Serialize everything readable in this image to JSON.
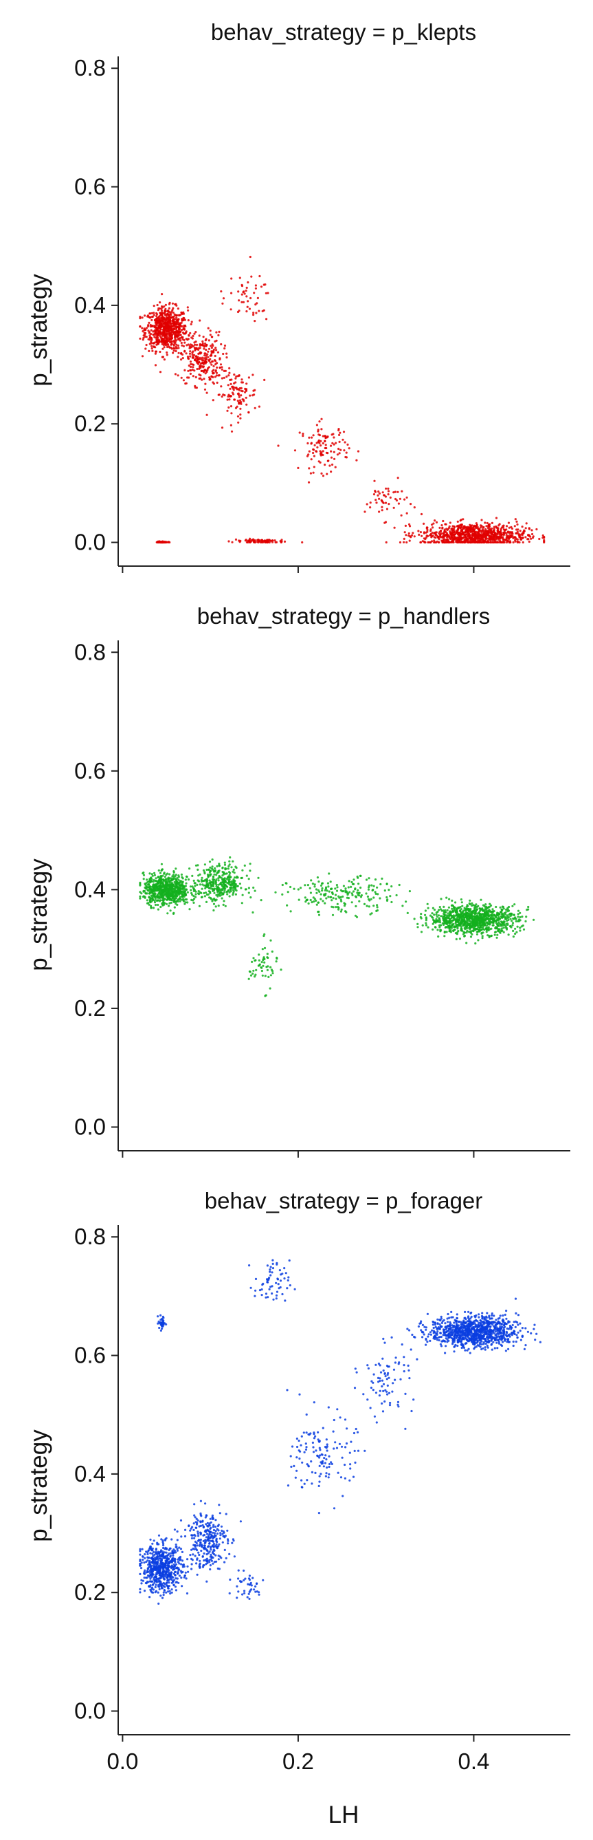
{
  "chart_data": [
    {
      "type": "scatter",
      "title": "behav_strategy = p_klepts",
      "ylabel": "p_strategy",
      "xlabel": "",
      "xlim": [
        -0.005,
        0.51
      ],
      "ylim": [
        -0.04,
        0.82
      ],
      "yticks": [
        0.0,
        0.2,
        0.4,
        0.6,
        0.8
      ],
      "ytick_labels": [
        "0.0",
        "0.2",
        "0.4",
        "0.6",
        "0.8"
      ],
      "xticks": [
        0.0,
        0.2,
        0.4
      ],
      "xtick_labels": [],
      "color": "#e00000",
      "grid": false,
      "series": [
        {
          "clusters": [
            {
              "x": 0.05,
              "y": 0.36,
              "sx": 0.012,
              "sy": 0.018,
              "n": 700
            },
            {
              "x": 0.09,
              "y": 0.31,
              "sx": 0.012,
              "sy": 0.022,
              "n": 260
            },
            {
              "x": 0.13,
              "y": 0.25,
              "sx": 0.012,
              "sy": 0.02,
              "n": 110
            },
            {
              "x": 0.23,
              "y": 0.16,
              "sx": 0.014,
              "sy": 0.02,
              "n": 110
            },
            {
              "x": 0.3,
              "y": 0.07,
              "sx": 0.012,
              "sy": 0.015,
              "n": 50
            },
            {
              "x": 0.4,
              "y": 0.012,
              "sx": 0.03,
              "sy": 0.01,
              "n": 900
            },
            {
              "x": 0.045,
              "y": 0.0,
              "sx": 0.003,
              "sy": 0.001,
              "n": 60
            },
            {
              "x": 0.155,
              "y": 0.002,
              "sx": 0.015,
              "sy": 0.002,
              "n": 80
            },
            {
              "x": 0.14,
              "y": 0.41,
              "sx": 0.015,
              "sy": 0.02,
              "n": 50
            }
          ]
        }
      ]
    },
    {
      "type": "scatter",
      "title": "behav_strategy = p_handlers",
      "ylabel": "p_strategy",
      "xlabel": "",
      "xlim": [
        -0.005,
        0.51
      ],
      "ylim": [
        -0.04,
        0.82
      ],
      "yticks": [
        0.0,
        0.2,
        0.4,
        0.6,
        0.8
      ],
      "ytick_labels": [
        "0.0",
        "0.2",
        "0.4",
        "0.6",
        "0.8"
      ],
      "xticks": [
        0.0,
        0.2,
        0.4
      ],
      "xtick_labels": [],
      "color": "#14b01e",
      "grid": false,
      "series": [
        {
          "clusters": [
            {
              "x": 0.05,
              "y": 0.4,
              "sx": 0.013,
              "sy": 0.013,
              "n": 700
            },
            {
              "x": 0.11,
              "y": 0.41,
              "sx": 0.015,
              "sy": 0.016,
              "n": 360
            },
            {
              "x": 0.16,
              "y": 0.27,
              "sx": 0.008,
              "sy": 0.02,
              "n": 55
            },
            {
              "x": 0.25,
              "y": 0.39,
              "sx": 0.03,
              "sy": 0.015,
              "n": 200
            },
            {
              "x": 0.4,
              "y": 0.35,
              "sx": 0.025,
              "sy": 0.012,
              "n": 1000
            }
          ]
        }
      ]
    },
    {
      "type": "scatter",
      "title": "behav_strategy = p_forager",
      "ylabel": "p_strategy",
      "xlabel": "LH",
      "xlim": [
        -0.005,
        0.51
      ],
      "ylim": [
        -0.04,
        0.82
      ],
      "yticks": [
        0.0,
        0.2,
        0.4,
        0.6,
        0.8
      ],
      "ytick_labels": [
        "0.0",
        "0.2",
        "0.4",
        "0.6",
        "0.8"
      ],
      "xticks": [
        0.0,
        0.2,
        0.4
      ],
      "xtick_labels": [
        "0.0",
        "0.2",
        "0.4"
      ],
      "color": "#0a3ee0",
      "grid": false,
      "series": [
        {
          "clusters": [
            {
              "x": 0.045,
              "y": 0.24,
              "sx": 0.012,
              "sy": 0.02,
              "n": 600
            },
            {
              "x": 0.095,
              "y": 0.29,
              "sx": 0.012,
              "sy": 0.025,
              "n": 280
            },
            {
              "x": 0.14,
              "y": 0.21,
              "sx": 0.012,
              "sy": 0.012,
              "n": 40
            },
            {
              "x": 0.23,
              "y": 0.43,
              "sx": 0.018,
              "sy": 0.035,
              "n": 130
            },
            {
              "x": 0.3,
              "y": 0.56,
              "sx": 0.015,
              "sy": 0.03,
              "n": 80
            },
            {
              "x": 0.4,
              "y": 0.64,
              "sx": 0.025,
              "sy": 0.013,
              "n": 1000
            },
            {
              "x": 0.17,
              "y": 0.72,
              "sx": 0.01,
              "sy": 0.02,
              "n": 60
            },
            {
              "x": 0.045,
              "y": 0.655,
              "sx": 0.002,
              "sy": 0.006,
              "n": 35
            }
          ]
        }
      ]
    }
  ]
}
